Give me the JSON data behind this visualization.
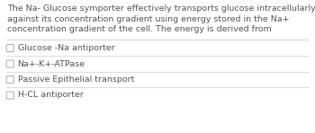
{
  "question_lines": [
    "The Na- Glucose symporter effectively transports glucose intracellularly",
    "against its concentration gradient using energy stored in the Na+",
    "concentration gradient of the cell. The energy is derived from"
  ],
  "options": [
    "Glucose -Na antiporter",
    "Na+-K+-ATPase",
    "Passive Epithelial transport",
    "H-CL antiporter"
  ],
  "bg_color": "#ffffff",
  "text_color": "#555555",
  "option_text_color": "#555555",
  "divider_color": "#d0d0d0",
  "checkbox_color": "#aaaaaa",
  "question_fontsize": 6.8,
  "option_fontsize": 6.8
}
